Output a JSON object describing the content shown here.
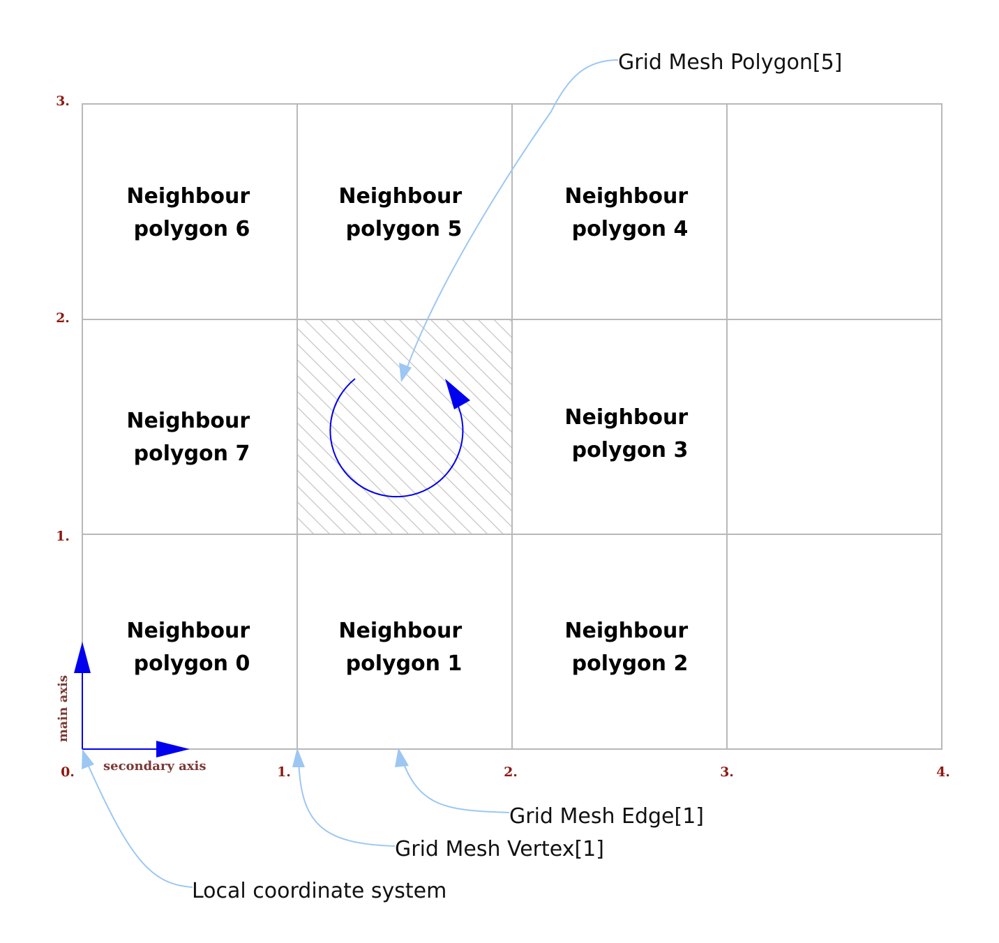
{
  "cells": [
    {
      "label_line1": "Neighbour",
      "label_line2": "polygon 0"
    },
    {
      "label_line1": "Neighbour",
      "label_line2": "polygon 1"
    },
    {
      "label_line1": "Neighbour",
      "label_line2": "polygon 2"
    },
    {
      "label_line1": "Neighbour",
      "label_line2": "polygon 3"
    },
    {
      "label_line1": "Neighbour",
      "label_line2": "polygon 4"
    },
    {
      "label_line1": "Neighbour",
      "label_line2": "polygon 5"
    },
    {
      "label_line1": "Neighbour",
      "label_line2": "polygon 6"
    },
    {
      "label_line1": "Neighbour",
      "label_line2": "polygon 7"
    }
  ],
  "x_ticks": [
    "0.",
    "1.",
    "2.",
    "3.",
    "4."
  ],
  "y_ticks": [
    "1.",
    "2.",
    "3."
  ],
  "axes": {
    "main_axis": "main axis",
    "secondary_axis": "secondary axis"
  },
  "callouts": {
    "polygon": "Grid Mesh Polygon[5]",
    "edge": "Grid Mesh Edge[1]",
    "vertex": "Grid Mesh Vertex[1]",
    "local_coords": "Local coordinate system"
  },
  "colors": {
    "tick_red": "#8b1a12",
    "axis_blue": "#0000ee",
    "callout_blue": "#9cc7f2",
    "grid_gray": "#b8b8b8",
    "hatch_gray": "#c4c4c4"
  }
}
